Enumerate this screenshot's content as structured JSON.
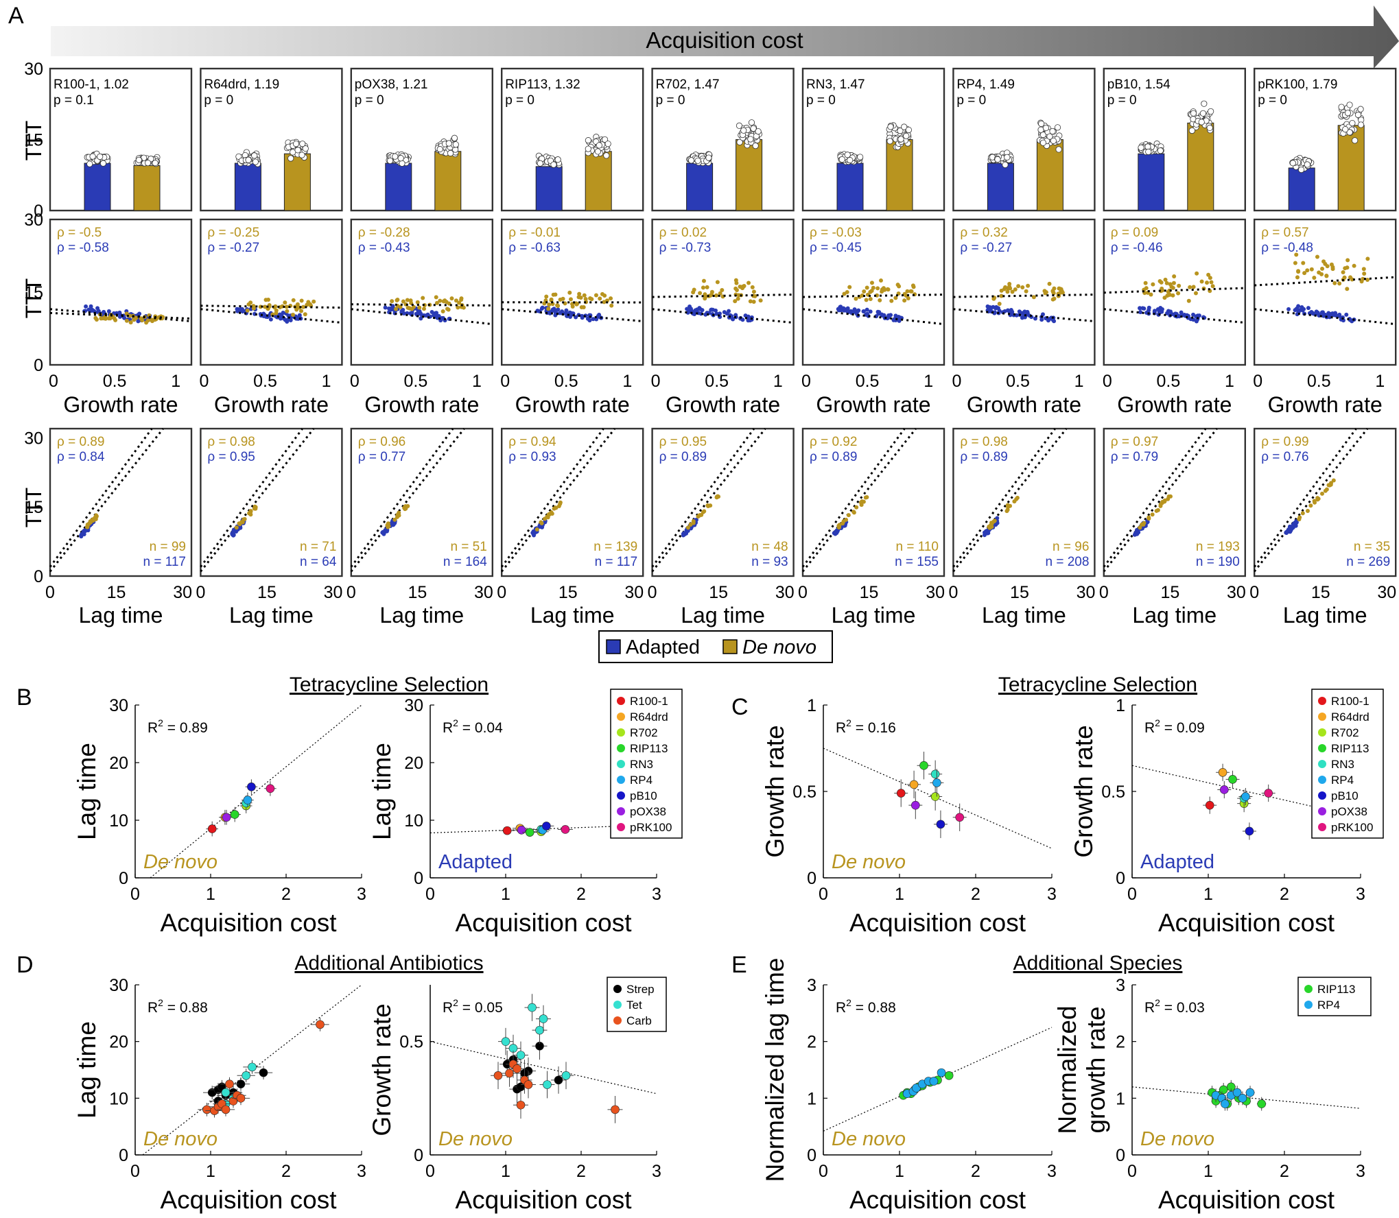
{
  "colors": {
    "adapted": "#2a3bb5",
    "denovo": "#b8941f",
    "bar_outline": "#333333"
  },
  "panel_labels": [
    "A",
    "B",
    "C",
    "D",
    "E"
  ],
  "panelA": {
    "arrow_label": "Acquisition cost",
    "ylabel": "TTT",
    "y_ticks": [
      "0",
      "15",
      "30"
    ],
    "growth_xlabel": "Growth rate",
    "growth_x_ticks": [
      "0",
      "0.5",
      "1"
    ],
    "lag_xlabel": "Lag time",
    "lag_x_ticks": [
      "0",
      "15",
      "30"
    ],
    "legend": {
      "adapted": "Adapted",
      "denovo": "De novo"
    },
    "plasmids": [
      {
        "name": "R100-1, 1.02",
        "p": "p = 0.1",
        "bar_adapted": 10,
        "bar_denovo": 9.5,
        "rho_g_d": "ρ = -0.5",
        "rho_g_a": "ρ = -0.58",
        "rho_l_d": "ρ = 0.89",
        "rho_l_a": "ρ = 0.84",
        "n_d": "n = 99",
        "n_a": "n = 117"
      },
      {
        "name": "R64drd, 1.19",
        "p": "p = 0",
        "bar_adapted": 10,
        "bar_denovo": 12,
        "rho_g_d": "ρ = -0.25",
        "rho_g_a": "ρ = -0.27",
        "rho_l_d": "ρ = 0.98",
        "rho_l_a": "ρ = 0.95",
        "n_d": "n = 71",
        "n_a": "n = 64"
      },
      {
        "name": "pOX38, 1.21",
        "p": "p = 0",
        "bar_adapted": 10,
        "bar_denovo": 12.5,
        "rho_g_d": "ρ = -0.28",
        "rho_g_a": "ρ = -0.43",
        "rho_l_d": "ρ = 0.96",
        "rho_l_a": "ρ = 0.77",
        "n_d": "n = 51",
        "n_a": "n = 164"
      },
      {
        "name": "RIP113, 1.32",
        "p": "p = 0",
        "bar_adapted": 9.3,
        "bar_denovo": 12.5,
        "rho_g_d": "ρ = -0.01",
        "rho_g_a": "ρ = -0.63",
        "rho_l_d": "ρ = 0.94",
        "rho_l_a": "ρ = 0.93",
        "n_d": "n = 139",
        "n_a": "n = 117"
      },
      {
        "name": "R702, 1.47",
        "p": "p = 0",
        "bar_adapted": 10,
        "bar_denovo": 15,
        "rho_g_d": "ρ = 0.02",
        "rho_g_a": "ρ = -0.73",
        "rho_l_d": "ρ = 0.95",
        "rho_l_a": "ρ = 0.89",
        "n_d": "n = 48",
        "n_a": "n = 93"
      },
      {
        "name": "RN3, 1.47",
        "p": "p = 0",
        "bar_adapted": 10,
        "bar_denovo": 15,
        "rho_g_d": "ρ = -0.03",
        "rho_g_a": "ρ = -0.45",
        "rho_l_d": "ρ = 0.92",
        "rho_l_a": "ρ = 0.89",
        "n_d": "n = 110",
        "n_a": "n = 155"
      },
      {
        "name": "RP4, 1.49",
        "p": "p = 0",
        "bar_adapted": 10,
        "bar_denovo": 15,
        "rho_g_d": "ρ = 0.32",
        "rho_g_a": "ρ = -0.27",
        "rho_l_d": "ρ = 0.98",
        "rho_l_a": "ρ = 0.89",
        "n_d": "n = 96",
        "n_a": "n = 208"
      },
      {
        "name": "pB10, 1.54",
        "p": "p = 0",
        "bar_adapted": 12,
        "bar_denovo": 18.5,
        "rho_g_d": "ρ = 0.09",
        "rho_g_a": "ρ = -0.46",
        "rho_l_d": "ρ = 0.97",
        "rho_l_a": "ρ = 0.79",
        "n_d": "n = 193",
        "n_a": "n = 190"
      },
      {
        "name": "pRK100, 1.79",
        "p": "p = 0",
        "bar_adapted": 9,
        "bar_denovo": 18,
        "rho_g_d": "ρ = 0.57",
        "rho_g_a": "ρ = -0.48",
        "rho_l_d": "ρ = 0.99",
        "rho_l_a": "ρ = 0.76",
        "n_d": "n = 35",
        "n_a": "n = 269"
      }
    ]
  },
  "titles": {
    "tet": "Tetracycline Selection",
    "abx": "Additional Antibiotics",
    "species": "Additional Species"
  },
  "axis": {
    "acq": "Acquisition cost",
    "lag": "Lag time",
    "growth": "Growth rate",
    "norm_lag": "Normalized  lag time",
    "norm_growth_1": "Normalized",
    "norm_growth_2": "growth rate"
  },
  "plasmid_legend": [
    {
      "name": "R100-1",
      "color": "#e3171b"
    },
    {
      "name": "R64drd",
      "color": "#f5a623"
    },
    {
      "name": "R702",
      "color": "#a6e51c"
    },
    {
      "name": "RIP113",
      "color": "#28d62a"
    },
    {
      "name": "RN3",
      "color": "#2fe0c2"
    },
    {
      "name": "RP4",
      "color": "#1fa8ec"
    },
    {
      "name": "pB10",
      "color": "#1515c8"
    },
    {
      "name": "pOX38",
      "color": "#9a1fe0"
    },
    {
      "name": "pRK100",
      "color": "#e0157f"
    }
  ],
  "abx_legend": [
    {
      "name": "Strep",
      "color": "#000000"
    },
    {
      "name": "Tet",
      "color": "#35e0d0"
    },
    {
      "name": "Carb",
      "color": "#e8531e"
    }
  ],
  "species_legend": [
    {
      "name": "RIP113",
      "color": "#28d62a"
    },
    {
      "name": "RP4",
      "color": "#1fa8ec"
    }
  ],
  "chart_data": [
    {
      "id": "B-denovo",
      "type": "scatter",
      "r2": "R",
      "r2_val": " = 0.89",
      "sup": "2",
      "note": "De novo",
      "note_color": "denovo",
      "xlabel": "Acquisition cost",
      "ylabel": "Lag time",
      "xlim": [
        0,
        3
      ],
      "ylim": [
        0,
        30
      ],
      "x_ticks": [
        "0",
        "1",
        "2",
        "3"
      ],
      "y_ticks": [
        "0",
        "10",
        "20",
        "30"
      ],
      "fit": [
        [
          0.2,
          0
        ],
        [
          3,
          30
        ]
      ],
      "points": [
        [
          1.02,
          8.5,
          "R100-1"
        ],
        [
          1.19,
          10.5,
          "R64drd"
        ],
        [
          1.21,
          10.5,
          "pOX38"
        ],
        [
          1.32,
          11,
          "RIP113"
        ],
        [
          1.47,
          12.5,
          "R702"
        ],
        [
          1.47,
          13,
          "RN3"
        ],
        [
          1.49,
          13.5,
          "RP4"
        ],
        [
          1.54,
          15.8,
          "pB10"
        ],
        [
          1.79,
          15.5,
          "pRK100"
        ]
      ],
      "xerr": 0.08,
      "yerr": 1.3
    },
    {
      "id": "B-adapted",
      "type": "scatter",
      "r2": "R",
      "r2_val": " = 0.04",
      "sup": "2",
      "note": "Adapted",
      "note_color": "adapted",
      "xlabel": "Acquisition cost",
      "ylabel": "Lag time",
      "xlim": [
        0,
        3
      ],
      "ylim": [
        0,
        30
      ],
      "x_ticks": [
        "0",
        "1",
        "2",
        "3"
      ],
      "y_ticks": [
        "0",
        "10",
        "20",
        "30"
      ],
      "fit": [
        [
          0,
          7.8
        ],
        [
          3,
          9.2
        ]
      ],
      "points": [
        [
          1.02,
          8.2,
          "R100-1"
        ],
        [
          1.19,
          8.6,
          "R64drd"
        ],
        [
          1.21,
          8.3,
          "pOX38"
        ],
        [
          1.32,
          7.9,
          "RIP113"
        ],
        [
          1.47,
          8.0,
          "R702"
        ],
        [
          1.47,
          8.4,
          "RN3"
        ],
        [
          1.49,
          8.3,
          "RP4"
        ],
        [
          1.54,
          9.0,
          "pB10"
        ],
        [
          1.79,
          8.4,
          "pRK100"
        ]
      ],
      "xerr": 0.1,
      "yerr": 0.6
    },
    {
      "id": "C-denovo",
      "type": "scatter",
      "r2": "R",
      "r2_val": " = 0.16",
      "sup": "2",
      "note": "De novo",
      "note_color": "denovo",
      "xlabel": "Acquisition cost",
      "ylabel": "Growth rate",
      "xlim": [
        0,
        3
      ],
      "ylim": [
        0,
        1
      ],
      "x_ticks": [
        "0",
        "1",
        "2",
        "3"
      ],
      "y_ticks": [
        "0",
        "0.5",
        "1"
      ],
      "fit": [
        [
          0,
          0.75
        ],
        [
          3,
          0.17
        ]
      ],
      "points": [
        [
          1.02,
          0.49,
          "R100-1"
        ],
        [
          1.19,
          0.54,
          "R64drd"
        ],
        [
          1.21,
          0.42,
          "pOX38"
        ],
        [
          1.32,
          0.65,
          "RIP113"
        ],
        [
          1.47,
          0.47,
          "R702"
        ],
        [
          1.47,
          0.6,
          "RN3"
        ],
        [
          1.49,
          0.55,
          "RP4"
        ],
        [
          1.54,
          0.31,
          "pB10"
        ],
        [
          1.79,
          0.35,
          "pRK100"
        ]
      ],
      "xerr": 0.09,
      "yerr": 0.08
    },
    {
      "id": "C-adapted",
      "type": "scatter",
      "r2": "R",
      "r2_val": " = 0.09",
      "sup": "2",
      "note": "Adapted",
      "note_color": "adapted",
      "xlabel": "Acquisition cost",
      "ylabel": "Growth rate",
      "xlim": [
        0,
        3
      ],
      "ylim": [
        0,
        1
      ],
      "x_ticks": [
        "0",
        "1",
        "2",
        "3"
      ],
      "y_ticks": [
        "0",
        "0.5",
        "1"
      ],
      "fit": [
        [
          0,
          0.65
        ],
        [
          3,
          0.35
        ]
      ],
      "points": [
        [
          1.02,
          0.42,
          "R100-1"
        ],
        [
          1.19,
          0.61,
          "R64drd"
        ],
        [
          1.21,
          0.51,
          "pOX38"
        ],
        [
          1.32,
          0.57,
          "RIP113"
        ],
        [
          1.47,
          0.43,
          "R702"
        ],
        [
          1.47,
          0.46,
          "RN3"
        ],
        [
          1.49,
          0.47,
          "RP4"
        ],
        [
          1.54,
          0.27,
          "pB10"
        ],
        [
          1.79,
          0.49,
          "pRK100"
        ]
      ],
      "xerr": 0.09,
      "yerr": 0.05
    },
    {
      "id": "D-lag",
      "type": "scatter",
      "r2": "R",
      "r2_val": " = 0.88",
      "sup": "2",
      "note": "De novo",
      "note_color": "denovo",
      "xlabel": "Acquisition cost",
      "ylabel": "Lag time",
      "xlim": [
        0,
        3
      ],
      "ylim": [
        0,
        30
      ],
      "x_ticks": [
        "0",
        "1",
        "2",
        "3"
      ],
      "y_ticks": [
        "0",
        "10",
        "20",
        "30"
      ],
      "fit": [
        [
          0.1,
          0
        ],
        [
          3,
          30
        ]
      ],
      "points": [
        [
          1.02,
          11,
          "Strep"
        ],
        [
          1.1,
          11.5,
          "Strep"
        ],
        [
          1.15,
          12,
          "Strep"
        ],
        [
          1.2,
          10.5,
          "Strep"
        ],
        [
          1.3,
          11,
          "Strep"
        ],
        [
          1.4,
          12.5,
          "Strep"
        ],
        [
          1.7,
          14.5,
          "Strep"
        ],
        [
          1.1,
          9.5,
          "Strep"
        ],
        [
          1.2,
          9,
          "Tet"
        ],
        [
          1.3,
          10,
          "Tet"
        ],
        [
          1.47,
          14,
          "Tet"
        ],
        [
          1.55,
          15.5,
          "Tet"
        ],
        [
          1.2,
          11,
          "Tet"
        ],
        [
          0.95,
          8,
          "Carb"
        ],
        [
          1.05,
          7.8,
          "Carb"
        ],
        [
          1.1,
          8.5,
          "Carb"
        ],
        [
          1.15,
          9,
          "Carb"
        ],
        [
          1.2,
          8,
          "Carb"
        ],
        [
          1.25,
          12.5,
          "Carb"
        ],
        [
          1.3,
          9.5,
          "Carb"
        ],
        [
          1.35,
          10.5,
          "Carb"
        ],
        [
          1.4,
          10,
          "Carb"
        ],
        [
          2.45,
          23,
          "Carb"
        ]
      ],
      "xerr": 0.12,
      "yerr": 1.2
    },
    {
      "id": "D-growth",
      "type": "scatter",
      "r2": "R",
      "r2_val": " = 0.05",
      "sup": "2",
      "note": "De novo",
      "note_color": "denovo",
      "xlabel": "Acquisition cost",
      "ylabel": "Growth rate",
      "xlim": [
        0,
        3
      ],
      "ylim": [
        0,
        0.75
      ],
      "x_ticks": [
        "0",
        "1",
        "2",
        "3"
      ],
      "y_ticks": [
        "0",
        "0.5"
      ],
      "fit": [
        [
          0,
          0.5
        ],
        [
          3,
          0.27
        ]
      ],
      "points": [
        [
          1.02,
          0.4,
          "Strep"
        ],
        [
          1.1,
          0.42,
          "Strep"
        ],
        [
          1.15,
          0.29,
          "Strep"
        ],
        [
          1.2,
          0.3,
          "Strep"
        ],
        [
          1.3,
          0.37,
          "Strep"
        ],
        [
          1.45,
          0.48,
          "Strep"
        ],
        [
          1.7,
          0.33,
          "Strep"
        ],
        [
          1.25,
          0.36,
          "Strep"
        ],
        [
          1.0,
          0.5,
          "Tet"
        ],
        [
          1.1,
          0.47,
          "Tet"
        ],
        [
          1.35,
          0.65,
          "Tet"
        ],
        [
          1.45,
          0.55,
          "Tet"
        ],
        [
          1.5,
          0.6,
          "Tet"
        ],
        [
          1.55,
          0.31,
          "Tet"
        ],
        [
          1.8,
          0.35,
          "Tet"
        ],
        [
          1.2,
          0.44,
          "Tet"
        ],
        [
          0.9,
          0.35,
          "Carb"
        ],
        [
          1.05,
          0.36,
          "Carb"
        ],
        [
          1.1,
          0.4,
          "Carb"
        ],
        [
          1.15,
          0.38,
          "Carb"
        ],
        [
          1.2,
          0.22,
          "Carb"
        ],
        [
          1.25,
          0.33,
          "Carb"
        ],
        [
          1.3,
          0.31,
          "Carb"
        ],
        [
          2.45,
          0.2,
          "Carb"
        ]
      ],
      "xerr": 0.1,
      "yerr": 0.06
    },
    {
      "id": "E-lag",
      "type": "scatter",
      "r2": "R",
      "r2_val": " = 0.88",
      "sup": "2",
      "note": "De novo",
      "note_color": "denovo",
      "xlabel": "Acquisition cost",
      "ylabel": "Normalized  lag time",
      "xlim": [
        0,
        3
      ],
      "ylim": [
        0,
        3
      ],
      "x_ticks": [
        "0",
        "1",
        "2",
        "3"
      ],
      "y_ticks": [
        "0",
        "1",
        "2",
        "3"
      ],
      "fit": [
        [
          0,
          0.42
        ],
        [
          3,
          2.25
        ]
      ],
      "points": [
        [
          1.05,
          1.05,
          "RIP113"
        ],
        [
          1.1,
          1.1,
          "RIP113"
        ],
        [
          1.15,
          1.08,
          "RIP113"
        ],
        [
          1.2,
          1.15,
          "RIP113"
        ],
        [
          1.25,
          1.2,
          "RIP113"
        ],
        [
          1.3,
          1.22,
          "RIP113"
        ],
        [
          1.4,
          1.28,
          "RIP113"
        ],
        [
          1.5,
          1.32,
          "RIP113"
        ],
        [
          1.65,
          1.4,
          "RIP113"
        ],
        [
          1.1,
          1.08,
          "RP4"
        ],
        [
          1.18,
          1.12,
          "RP4"
        ],
        [
          1.22,
          1.18,
          "RP4"
        ],
        [
          1.3,
          1.25,
          "RP4"
        ],
        [
          1.38,
          1.3,
          "RP4"
        ],
        [
          1.45,
          1.3,
          "RP4"
        ],
        [
          1.55,
          1.45,
          "RP4"
        ]
      ],
      "xerr": 0.05,
      "yerr": 0.05
    },
    {
      "id": "E-growth",
      "type": "scatter",
      "r2": "R",
      "r2_val": " = 0.03",
      "sup": "2",
      "note": "De novo",
      "note_color": "denovo",
      "xlabel": "Acquisition cost",
      "ylabel": "",
      "xlim": [
        0,
        3
      ],
      "ylim": [
        0,
        3
      ],
      "x_ticks": [
        "0",
        "1",
        "2",
        "3"
      ],
      "y_ticks": [
        "0",
        "1",
        "2",
        "3"
      ],
      "fit": [
        [
          0,
          1.2
        ],
        [
          3,
          0.82
        ]
      ],
      "points": [
        [
          1.05,
          1.1,
          "RIP113"
        ],
        [
          1.1,
          0.95,
          "RIP113"
        ],
        [
          1.15,
          1.05,
          "RIP113"
        ],
        [
          1.2,
          1.15,
          "RIP113"
        ],
        [
          1.25,
          0.9,
          "RIP113"
        ],
        [
          1.3,
          1.2,
          "RIP113"
        ],
        [
          1.4,
          1.0,
          "RIP113"
        ],
        [
          1.5,
          0.95,
          "RIP113"
        ],
        [
          1.7,
          0.9,
          "RIP113"
        ],
        [
          1.1,
          1.05,
          "RP4"
        ],
        [
          1.18,
          1.0,
          "RP4"
        ],
        [
          1.22,
          0.9,
          "RP4"
        ],
        [
          1.3,
          1.05,
          "RP4"
        ],
        [
          1.38,
          1.1,
          "RP4"
        ],
        [
          1.45,
          1.0,
          "RP4"
        ],
        [
          1.55,
          1.1,
          "RP4"
        ]
      ],
      "xerr": 0.06,
      "yerr": 0.12
    }
  ]
}
